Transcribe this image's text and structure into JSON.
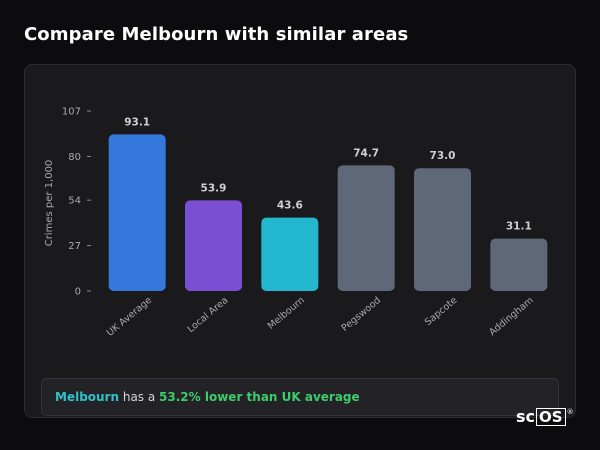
{
  "page": {
    "title": "Compare Melbourn with similar areas"
  },
  "chart_data": {
    "type": "bar",
    "title": "",
    "xlabel": "",
    "ylabel": "Crimes per 1,000",
    "ylim": [
      0,
      107
    ],
    "yticks": [
      0,
      27,
      54,
      80,
      107
    ],
    "grid": false,
    "categories": [
      "UK Average",
      "Local Area",
      "Melbourn",
      "Pegswood",
      "Sapcote",
      "Addingham"
    ],
    "values": [
      93.1,
      53.9,
      43.6,
      74.7,
      73.0,
      31.1
    ],
    "value_labels": [
      "93.1",
      "53.9",
      "43.6",
      "74.7",
      "73.0",
      "31.1"
    ],
    "colors": [
      "#3578dc",
      "#7b4fd4",
      "#23b8cf",
      "#5f6878",
      "#5f6878",
      "#5f6878"
    ]
  },
  "summary": {
    "name": "Melbourn",
    "mid": " has a ",
    "highlight": "53.2% lower than UK average"
  },
  "logo": {
    "part1": "sc",
    "part2": "OS",
    "reg": "®"
  }
}
